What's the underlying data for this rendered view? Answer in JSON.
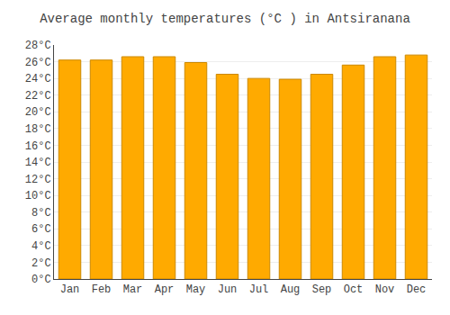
{
  "chart_data": {
    "type": "bar",
    "title": "Average monthly temperatures (°C ) in Antsiranana",
    "categories": [
      "Jan",
      "Feb",
      "Mar",
      "Apr",
      "May",
      "Jun",
      "Jul",
      "Aug",
      "Sep",
      "Oct",
      "Nov",
      "Dec"
    ],
    "values": [
      26.2,
      26.2,
      26.6,
      26.6,
      25.9,
      24.5,
      24.0,
      23.9,
      24.5,
      25.6,
      26.6,
      26.8
    ],
    "color": "#FFAA00",
    "ylim": [
      0,
      28
    ],
    "yticks": [
      {
        "value": 0,
        "label": "0°C"
      },
      {
        "value": 2,
        "label": "2°C"
      },
      {
        "value": 4,
        "label": "4°C"
      },
      {
        "value": 6,
        "label": "6°C"
      },
      {
        "value": 8,
        "label": "8°C"
      },
      {
        "value": 10,
        "label": "10°C"
      },
      {
        "value": 12,
        "label": "12°C"
      },
      {
        "value": 14,
        "label": "14°C"
      },
      {
        "value": 16,
        "label": "16°C"
      },
      {
        "value": 18,
        "label": "18°C"
      },
      {
        "value": 20,
        "label": "20°C"
      },
      {
        "value": 22,
        "label": "22°C"
      },
      {
        "value": 24,
        "label": "24°C"
      },
      {
        "value": 26,
        "label": "26°C"
      },
      {
        "value": 28,
        "label": "28°C"
      }
    ],
    "grid": true
  }
}
